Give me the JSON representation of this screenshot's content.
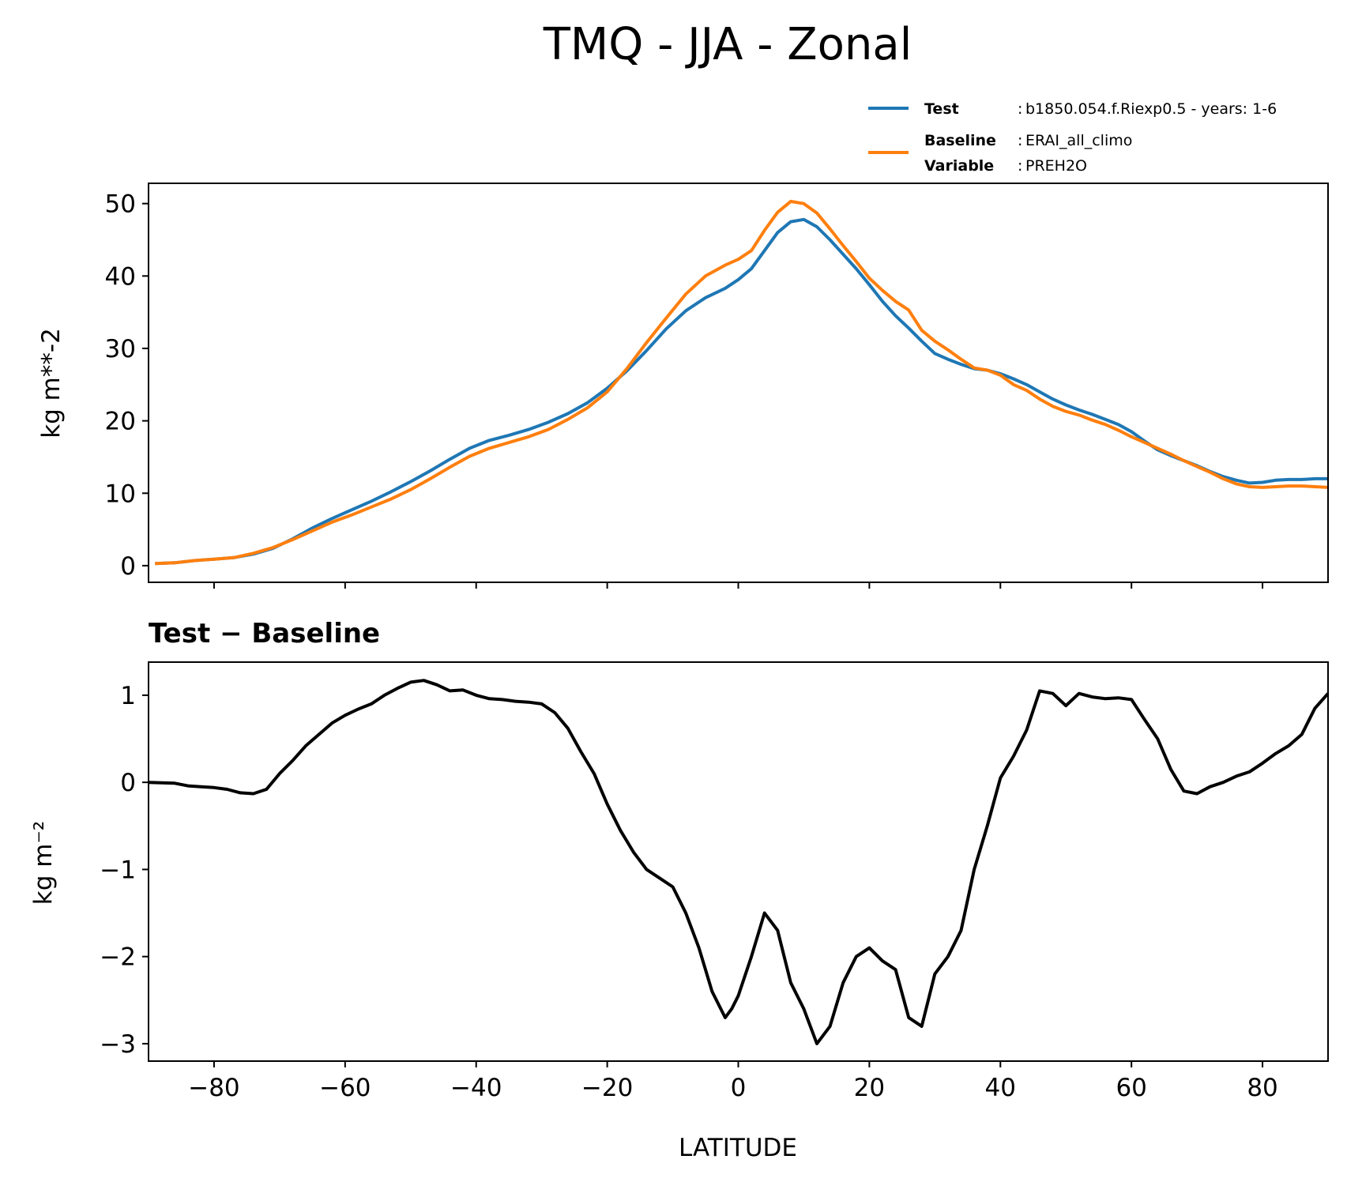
{
  "figure": {
    "title": "TMQ - JJA - Zonal"
  },
  "legend": {
    "test": {
      "key": "Test",
      "text": "b1850.054.f.Riexp0.5 - years: 1-6",
      "color": "#1f77b4"
    },
    "baseline": {
      "key": "Baseline",
      "text": "ERAI_all_climo",
      "color": "#ff7f0e"
    },
    "variable": {
      "key": "Variable",
      "text": "PREH2O"
    },
    "sep": ":"
  },
  "chart_data": [
    {
      "type": "line",
      "title": "",
      "xlabel": "",
      "ylabel": "kg m**-2",
      "xlim": [
        -90,
        90
      ],
      "ylim": [
        -2.3,
        52.8
      ],
      "yticks": [
        0,
        10,
        20,
        30,
        40,
        50
      ],
      "ytick_labels": [
        "0",
        "10",
        "20",
        "30",
        "40",
        "50"
      ],
      "xticks": [
        -80,
        -60,
        -40,
        -20,
        0,
        20,
        40,
        60,
        80
      ],
      "series": [
        {
          "name": "Test",
          "color": "#1f77b4",
          "x": [
            -89,
            -86,
            -83,
            -80,
            -77,
            -74,
            -71,
            -68,
            -65,
            -62,
            -59,
            -56,
            -53,
            -50,
            -47,
            -44,
            -41,
            -38,
            -35,
            -32,
            -29,
            -26,
            -23,
            -20,
            -17,
            -14,
            -11,
            -8,
            -5,
            -2,
            0,
            2,
            4,
            6,
            8,
            10,
            12,
            14,
            16,
            18,
            20,
            22,
            24,
            26,
            28,
            30,
            32,
            34,
            36,
            38,
            40,
            42,
            44,
            46,
            48,
            50,
            52,
            54,
            56,
            58,
            60,
            62,
            64,
            66,
            68,
            70,
            72,
            74,
            76,
            78,
            80,
            82,
            84,
            86,
            88,
            90
          ],
          "values": [
            0.3,
            0.4,
            0.7,
            0.9,
            1.1,
            1.6,
            2.4,
            3.7,
            5.2,
            6.5,
            7.7,
            8.9,
            10.2,
            11.6,
            13.1,
            14.7,
            16.2,
            17.3,
            18.0,
            18.8,
            19.8,
            21.0,
            22.5,
            24.5,
            26.9,
            29.7,
            32.7,
            35.2,
            37.0,
            38.3,
            39.5,
            41.0,
            43.5,
            46.0,
            47.5,
            47.8,
            46.8,
            45.0,
            43.0,
            41.0,
            38.8,
            36.5,
            34.5,
            32.8,
            31.0,
            29.3,
            28.5,
            27.8,
            27.2,
            27.0,
            26.5,
            25.8,
            25.0,
            24.0,
            23.0,
            22.2,
            21.5,
            20.9,
            20.2,
            19.5,
            18.5,
            17.2,
            16.0,
            15.2,
            14.5,
            13.8,
            13.0,
            12.3,
            11.8,
            11.4,
            11.5,
            11.8,
            11.9,
            11.9,
            12.0,
            12.0
          ]
        },
        {
          "name": "Baseline",
          "color": "#ff7f0e",
          "x": [
            -89,
            -86,
            -83,
            -80,
            -77,
            -74,
            -71,
            -68,
            -65,
            -62,
            -59,
            -56,
            -53,
            -50,
            -47,
            -44,
            -41,
            -38,
            -35,
            -32,
            -29,
            -26,
            -23,
            -20,
            -17,
            -14,
            -11,
            -8,
            -5,
            -2,
            0,
            2,
            4,
            6,
            8,
            10,
            12,
            14,
            16,
            18,
            20,
            22,
            24,
            26,
            28,
            30,
            32,
            34,
            36,
            38,
            40,
            42,
            44,
            46,
            48,
            50,
            52,
            54,
            56,
            58,
            60,
            62,
            64,
            66,
            68,
            70,
            72,
            74,
            76,
            78,
            80,
            82,
            84,
            86,
            88,
            90
          ],
          "values": [
            0.3,
            0.4,
            0.7,
            0.9,
            1.1,
            1.7,
            2.5,
            3.6,
            4.8,
            6.0,
            7.0,
            8.1,
            9.2,
            10.5,
            12.0,
            13.6,
            15.1,
            16.2,
            17.0,
            17.8,
            18.8,
            20.2,
            21.8,
            24.0,
            27.2,
            30.8,
            34.2,
            37.5,
            40.0,
            41.5,
            42.3,
            43.5,
            46.3,
            48.8,
            50.3,
            50.0,
            48.7,
            46.5,
            44.2,
            42.0,
            39.7,
            38.0,
            36.5,
            35.3,
            32.5,
            31.0,
            29.8,
            28.5,
            27.3,
            27.0,
            26.3,
            25.0,
            24.2,
            23.0,
            22.0,
            21.3,
            20.8,
            20.1,
            19.5,
            18.7,
            17.8,
            17.0,
            16.2,
            15.4,
            14.5,
            13.7,
            12.9,
            12.0,
            11.3,
            10.9,
            10.8,
            10.9,
            11.0,
            11.0,
            10.9,
            10.8
          ]
        }
      ]
    },
    {
      "type": "line",
      "title": "Test − Baseline",
      "xlabel": "LATITUDE",
      "ylabel": "kg m⁻²",
      "xlim": [
        -90,
        90
      ],
      "ylim": [
        -3.2,
        1.38
      ],
      "yticks": [
        -3,
        -2,
        -1,
        0,
        1
      ],
      "ytick_labels": [
        "−3",
        "−2",
        "−1",
        "0",
        "1"
      ],
      "xticks": [
        -80,
        -60,
        -40,
        -20,
        0,
        20,
        40,
        60,
        80
      ],
      "xtick_labels": [
        "−80",
        "−60",
        "−40",
        "−20",
        "0",
        "20",
        "40",
        "60",
        "80"
      ],
      "series": [
        {
          "name": "Test − Baseline",
          "color": "#000000",
          "x": [
            -90,
            -86,
            -84,
            -82,
            -80,
            -78,
            -76,
            -74,
            -72,
            -70,
            -68,
            -66,
            -64,
            -62,
            -60,
            -58,
            -56,
            -54,
            -52,
            -50,
            -48,
            -46,
            -44,
            -42,
            -40,
            -38,
            -36,
            -34,
            -32,
            -30,
            -28,
            -26,
            -24,
            -22,
            -20,
            -18,
            -16,
            -14,
            -12,
            -10,
            -8,
            -6,
            -4,
            -2,
            -1,
            0,
            2,
            4,
            6,
            8,
            10,
            12,
            14,
            16,
            18,
            20,
            22,
            24,
            26,
            28,
            30,
            32,
            34,
            36,
            38,
            40,
            42,
            44,
            46,
            48,
            50,
            52,
            54,
            56,
            58,
            60,
            62,
            64,
            66,
            68,
            70,
            72,
            74,
            76,
            78,
            80,
            82,
            84,
            86,
            88,
            90
          ],
          "values": [
            0.0,
            -0.01,
            -0.04,
            -0.05,
            -0.06,
            -0.08,
            -0.12,
            -0.13,
            -0.08,
            0.1,
            0.25,
            0.42,
            0.55,
            0.68,
            0.77,
            0.84,
            0.9,
            1.0,
            1.08,
            1.15,
            1.17,
            1.12,
            1.05,
            1.06,
            1.0,
            0.96,
            0.95,
            0.93,
            0.92,
            0.9,
            0.8,
            0.62,
            0.35,
            0.1,
            -0.25,
            -0.55,
            -0.8,
            -1.0,
            -1.1,
            -1.2,
            -1.5,
            -1.9,
            -2.4,
            -2.7,
            -2.6,
            -2.45,
            -2.0,
            -1.5,
            -1.7,
            -2.3,
            -2.6,
            -3.0,
            -2.8,
            -2.3,
            -2.0,
            -1.9,
            -2.05,
            -2.15,
            -2.7,
            -2.8,
            -2.2,
            -2.0,
            -1.7,
            -1.0,
            -0.5,
            0.05,
            0.3,
            0.6,
            1.05,
            1.02,
            0.88,
            1.02,
            0.98,
            0.96,
            0.97,
            0.95,
            0.72,
            0.5,
            0.15,
            -0.1,
            -0.13,
            -0.05,
            0.0,
            0.07,
            0.12,
            0.22,
            0.33,
            0.42,
            0.55,
            0.85,
            1.02
          ]
        }
      ]
    }
  ]
}
